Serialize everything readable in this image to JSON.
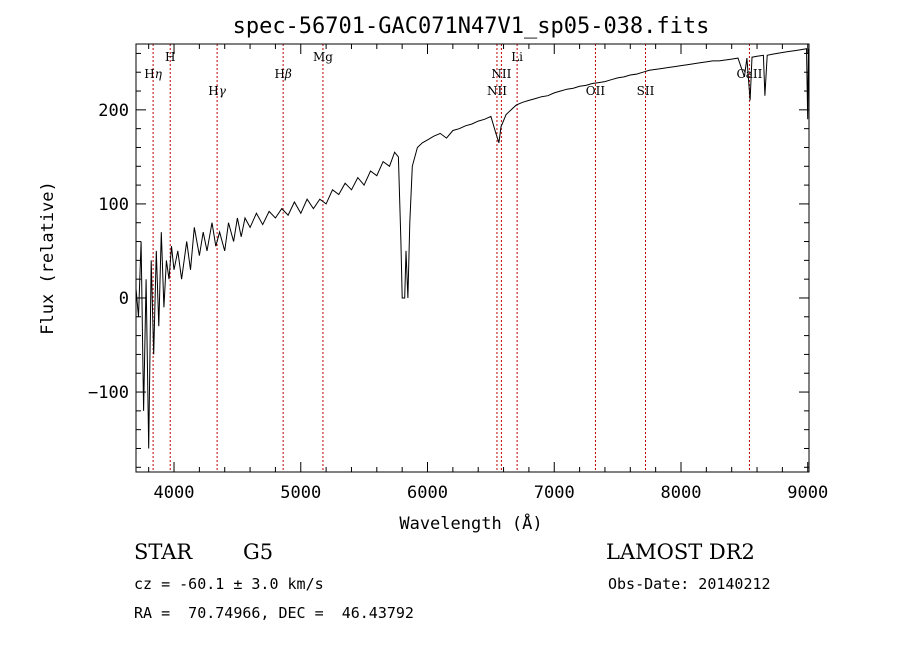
{
  "chart_data": {
    "type": "line",
    "title": "spec-56701-GAC071N47V1_sp05-038.fits",
    "xlabel": "Wavelength (Å)",
    "ylabel": "Flux (relative)",
    "xlim": [
      3700,
      9010
    ],
    "ylim": [
      -185,
      270
    ],
    "xticks": [
      4000,
      5000,
      6000,
      7000,
      8000,
      9000
    ],
    "yticks": [
      -100,
      0,
      100,
      200
    ],
    "grid": false,
    "series": [
      {
        "color": "#000000",
        "points": [
          [
            3700,
            10
          ],
          [
            3720,
            -20
          ],
          [
            3740,
            60
          ],
          [
            3760,
            -120
          ],
          [
            3780,
            20
          ],
          [
            3800,
            -160
          ],
          [
            3820,
            40
          ],
          [
            3840,
            -60
          ],
          [
            3860,
            50
          ],
          [
            3880,
            -30
          ],
          [
            3900,
            70
          ],
          [
            3920,
            -10
          ],
          [
            3940,
            40
          ],
          [
            3960,
            20
          ],
          [
            3980,
            55
          ],
          [
            4000,
            30
          ],
          [
            4030,
            50
          ],
          [
            4060,
            20
          ],
          [
            4100,
            60
          ],
          [
            4130,
            30
          ],
          [
            4160,
            75
          ],
          [
            4200,
            45
          ],
          [
            4230,
            70
          ],
          [
            4260,
            50
          ],
          [
            4300,
            80
          ],
          [
            4330,
            55
          ],
          [
            4360,
            70
          ],
          [
            4400,
            50
          ],
          [
            4430,
            80
          ],
          [
            4470,
            60
          ],
          [
            4500,
            85
          ],
          [
            4530,
            65
          ],
          [
            4560,
            85
          ],
          [
            4600,
            75
          ],
          [
            4650,
            90
          ],
          [
            4700,
            78
          ],
          [
            4750,
            92
          ],
          [
            4800,
            85
          ],
          [
            4850,
            95
          ],
          [
            4900,
            88
          ],
          [
            4950,
            102
          ],
          [
            5000,
            90
          ],
          [
            5050,
            105
          ],
          [
            5100,
            95
          ],
          [
            5150,
            105
          ],
          [
            5200,
            100
          ],
          [
            5250,
            115
          ],
          [
            5300,
            110
          ],
          [
            5350,
            122
          ],
          [
            5400,
            115
          ],
          [
            5450,
            128
          ],
          [
            5500,
            120
          ],
          [
            5550,
            135
          ],
          [
            5600,
            130
          ],
          [
            5650,
            145
          ],
          [
            5700,
            140
          ],
          [
            5740,
            155
          ],
          [
            5770,
            150
          ],
          [
            5790,
            60
          ],
          [
            5800,
            0
          ],
          [
            5820,
            0
          ],
          [
            5830,
            50
          ],
          [
            5845,
            0
          ],
          [
            5860,
            80
          ],
          [
            5880,
            140
          ],
          [
            5920,
            160
          ],
          [
            5960,
            165
          ],
          [
            6000,
            168
          ],
          [
            6050,
            172
          ],
          [
            6100,
            175
          ],
          [
            6150,
            170
          ],
          [
            6200,
            178
          ],
          [
            6250,
            180
          ],
          [
            6300,
            183
          ],
          [
            6350,
            185
          ],
          [
            6400,
            188
          ],
          [
            6450,
            190
          ],
          [
            6500,
            193
          ],
          [
            6540,
            175
          ],
          [
            6563,
            165
          ],
          [
            6580,
            182
          ],
          [
            6620,
            195
          ],
          [
            6660,
            200
          ],
          [
            6700,
            205
          ],
          [
            6750,
            208
          ],
          [
            6800,
            210
          ],
          [
            6850,
            212
          ],
          [
            6900,
            214
          ],
          [
            6950,
            215
          ],
          [
            7000,
            218
          ],
          [
            7050,
            220
          ],
          [
            7100,
            222
          ],
          [
            7150,
            223
          ],
          [
            7200,
            225
          ],
          [
            7250,
            226
          ],
          [
            7300,
            228
          ],
          [
            7350,
            229
          ],
          [
            7400,
            230
          ],
          [
            7450,
            232
          ],
          [
            7500,
            234
          ],
          [
            7550,
            235
          ],
          [
            7600,
            237
          ],
          [
            7650,
            238
          ],
          [
            7700,
            240
          ],
          [
            7750,
            242
          ],
          [
            7800,
            243
          ],
          [
            7850,
            244
          ],
          [
            7900,
            245
          ],
          [
            7950,
            246
          ],
          [
            8000,
            247
          ],
          [
            8050,
            248
          ],
          [
            8100,
            249
          ],
          [
            8150,
            250
          ],
          [
            8200,
            251
          ],
          [
            8250,
            252
          ],
          [
            8300,
            252
          ],
          [
            8350,
            253
          ],
          [
            8400,
            254
          ],
          [
            8450,
            255
          ],
          [
            8500,
            235
          ],
          [
            8520,
            255
          ],
          [
            8545,
            210
          ],
          [
            8560,
            256
          ],
          [
            8600,
            257
          ],
          [
            8650,
            258
          ],
          [
            8662,
            215
          ],
          [
            8680,
            258
          ],
          [
            8720,
            259
          ],
          [
            8760,
            260
          ],
          [
            8800,
            261
          ],
          [
            8850,
            262
          ],
          [
            8900,
            263
          ],
          [
            8950,
            264
          ],
          [
            8990,
            265
          ],
          [
            9000,
            190
          ],
          [
            9005,
            265
          ]
        ]
      }
    ],
    "lines": [
      {
        "label": "H",
        "greek": "η",
        "x": 3835,
        "row": 2
      },
      {
        "label": "H",
        "greek": "",
        "x": 3970,
        "row": 1
      },
      {
        "label": "H",
        "greek": "γ",
        "x": 4340,
        "row": 3
      },
      {
        "label": "H",
        "greek": "β",
        "x": 4861,
        "row": 2
      },
      {
        "label": "Mg",
        "greek": "",
        "x": 5175,
        "row": 1
      },
      {
        "label": "NII",
        "greek": "",
        "x": 6548,
        "row": 3
      },
      {
        "label": "NII",
        "greek": "",
        "x": 6583,
        "row": 2
      },
      {
        "label": "Li",
        "greek": "",
        "x": 6707,
        "row": 1
      },
      {
        "label": "OII",
        "greek": "",
        "x": 7325,
        "row": 3
      },
      {
        "label": "SII",
        "greek": "",
        "x": 7720,
        "row": 3
      },
      {
        "label": "CaII",
        "greek": "",
        "x": 8540,
        "row": 2
      }
    ],
    "line_color": "#c00000"
  },
  "info": {
    "class": "STAR",
    "subclass": "G5",
    "survey": "LAMOST DR2",
    "cz": "cz = -60.1 ± 3.0 km/s",
    "obs_date": "Obs-Date: 20140212",
    "coords": "RA =  70.74966, DEC =  46.43792"
  }
}
